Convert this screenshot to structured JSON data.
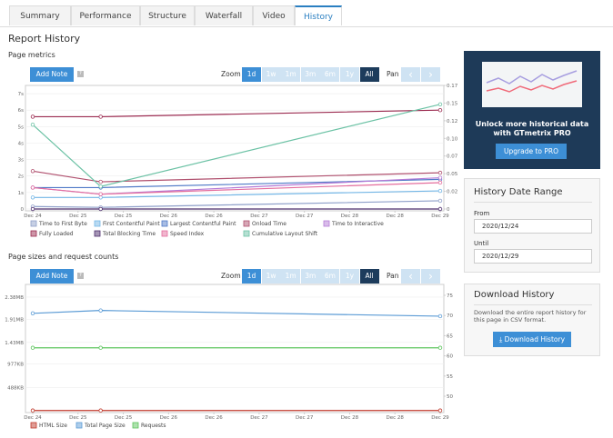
{
  "tabs": [
    "Summary",
    "Performance",
    "Structure",
    "Waterfall",
    "Video",
    "History"
  ],
  "heading": "Report History",
  "zoom": {
    "label": "Zoom",
    "options": [
      "1d",
      "1w",
      "1m",
      "3m",
      "6m",
      "1y",
      "All"
    ],
    "pan": "Pan"
  },
  "add_note": "Add Note",
  "help": "?",
  "chart_data": [
    {
      "type": "line",
      "title": "Page metrics",
      "x": [
        0,
        1.5,
        9
      ],
      "xlim": [
        0,
        9
      ],
      "xticks": [
        {
          "value": 0,
          "label": "Dec 24"
        },
        {
          "value": 1,
          "label": "Dec 25"
        },
        {
          "value": 2,
          "label": "Dec 25"
        },
        {
          "value": 3,
          "label": "Dec 26"
        },
        {
          "value": 4,
          "label": "Dec 26"
        },
        {
          "value": 5,
          "label": "Dec 27"
        },
        {
          "value": 6,
          "label": "Dec 27"
        },
        {
          "value": 7,
          "label": "Dec 28"
        },
        {
          "value": 8,
          "label": "Dec 28"
        },
        {
          "value": 9,
          "label": "Dec 29"
        }
      ],
      "ylim": [
        0,
        7.5
      ],
      "yticks": [
        0,
        {
          "value": 1,
          "label": "1s"
        },
        {
          "value": 2,
          "label": "2s"
        },
        {
          "value": 3,
          "label": "3s"
        },
        {
          "value": 4,
          "label": "4s"
        },
        {
          "value": 5,
          "label": "5s"
        },
        {
          "value": 6,
          "label": "6s"
        },
        {
          "value": 7,
          "label": "7s"
        }
      ],
      "y2lim": [
        0,
        0.17
      ],
      "y2ticks": [
        0,
        {
          "value": 0.0243,
          "label": "0.02"
        },
        {
          "value": 0.0486,
          "label": "0.05"
        },
        {
          "value": 0.0729,
          "label": "0.07"
        },
        {
          "value": 0.0971,
          "label": "0.10"
        },
        {
          "value": 0.1214,
          "label": "0.12"
        },
        {
          "value": 0.1457,
          "label": "0.15"
        },
        {
          "value": 0.17,
          "label": "0.17"
        }
      ],
      "grid": true,
      "legend": "bottom-left",
      "series": [
        {
          "name": "Time to First Byte",
          "color": "#8e9fc9",
          "values": [
            0.15,
            0.1,
            0.5
          ]
        },
        {
          "name": "First Contentful Paint",
          "color": "#73b6e6",
          "values": [
            0.7,
            0.7,
            1.1
          ]
        },
        {
          "name": "Largest Contentful Paint",
          "color": "#4f79c7",
          "values": [
            1.3,
            1.3,
            1.8
          ]
        },
        {
          "name": "Onload Time",
          "color": "#b0506e",
          "values": [
            2.3,
            1.65,
            2.2
          ]
        },
        {
          "name": "Time to Interactive",
          "color": "#b47ad6",
          "values": [
            1.3,
            0.9,
            1.9
          ]
        },
        {
          "name": "Fully Loaded",
          "color": "#9b2b50",
          "values": [
            5.6,
            5.6,
            6.0
          ]
        },
        {
          "name": "Total Blocking Time",
          "color": "#4b2c6b",
          "values": [
            0,
            0,
            0
          ]
        },
        {
          "name": "Speed Index",
          "color": "#e46d9d",
          "values": [
            1.3,
            0.9,
            1.6
          ]
        },
        {
          "name": "Cumulative Layout Shift",
          "color": "#6cc2a5",
          "axis": "y2",
          "values": [
            0.116,
            0.031,
            0.144
          ]
        }
      ]
    },
    {
      "type": "line",
      "title": "Page sizes and request counts",
      "x": [
        0,
        1.5,
        9
      ],
      "xlim": [
        0,
        9
      ],
      "xticks": [
        {
          "value": 0,
          "label": "Dec 24"
        },
        {
          "value": 1,
          "label": "Dec 25"
        },
        {
          "value": 2,
          "label": "Dec 25"
        },
        {
          "value": 3,
          "label": "Dec 26"
        },
        {
          "value": 4,
          "label": "Dec 26"
        },
        {
          "value": 5,
          "label": "Dec 27"
        },
        {
          "value": 6,
          "label": "Dec 27"
        },
        {
          "value": 7,
          "label": "Dec 28"
        },
        {
          "value": 8,
          "label": "Dec 28"
        },
        {
          "value": 9,
          "label": "Dec 29"
        }
      ],
      "ylim": [
        0,
        2.645
      ],
      "yticks": [
        {
          "value": 0.488,
          "label": "488KB"
        },
        {
          "value": 0.977,
          "label": "977KB"
        },
        {
          "value": 1.43,
          "label": "1.43MB"
        },
        {
          "value": 1.91,
          "label": "1.91MB"
        },
        {
          "value": 2.38,
          "label": "2.38MB"
        }
      ],
      "y2lim": [
        46.4,
        77.7
      ],
      "y2ticks": [
        50,
        55,
        60,
        65,
        70,
        75
      ],
      "grid": true,
      "legend": "bottom-left",
      "series": [
        {
          "name": "HTML Size",
          "color": "#c0392b",
          "values": [
            0.005,
            0.005,
            0.005
          ]
        },
        {
          "name": "Total Page Size",
          "color": "#5b9bd5",
          "values": [
            2.04,
            2.1,
            1.98
          ]
        },
        {
          "name": "Requests",
          "color": "#5cc45c",
          "axis": "y2",
          "values": [
            62,
            62,
            62
          ]
        }
      ]
    }
  ],
  "sidebar": {
    "promo": {
      "text": "Unlock more historical data with GTmetrix PRO",
      "button": "Upgrade to PRO"
    },
    "date_range": {
      "title": "History Date Range",
      "from_label": "From",
      "from": "2020/12/24",
      "until_label": "Until",
      "until": "2020/12/29"
    },
    "download": {
      "title": "Download History",
      "text": "Download the entire report history for this page in CSV format.",
      "button": "Download History"
    }
  }
}
